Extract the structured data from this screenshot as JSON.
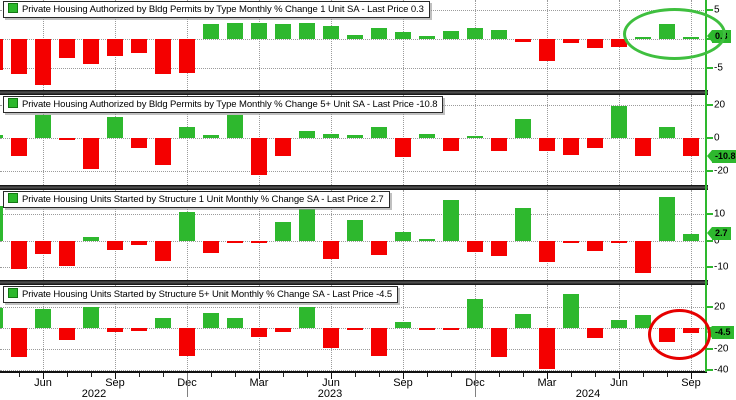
{
  "colors": {
    "bar_up_green": "#2eb82e",
    "bar_down_red": "#f40000",
    "axis_green": "#2eb82e",
    "grid_gray": "#9b9b9b",
    "annotation_green": "#3fbf3f",
    "annotation_red": "#e60000"
  },
  "chart_data": {
    "type": "bar",
    "categories": [
      "Apr 2022",
      "May 2022",
      "Jun 2022",
      "Jul 2022",
      "Aug 2022",
      "Sep 2022",
      "Oct 2022",
      "Nov 2022",
      "Dec 2022",
      "Jan 2023",
      "Feb 2023",
      "Mar 2023",
      "Apr 2023",
      "May 2023",
      "Jun 2023",
      "Jul 2023",
      "Aug 2023",
      "Sep 2023",
      "Oct 2023",
      "Nov 2023",
      "Dec 2023",
      "Jan 2024",
      "Feb 2024",
      "Mar 2024",
      "Apr 2024",
      "May 2024",
      "Jun 2024",
      "Jul 2024",
      "Aug 2024",
      "Sep 2024"
    ],
    "x_tick_labels": [
      "Jun",
      "Sep",
      "Dec",
      "Mar",
      "Jun",
      "Sep",
      "Dec",
      "Mar",
      "Jun",
      "Sep"
    ],
    "years": [
      "2022",
      "2023",
      "2024"
    ],
    "grid": true,
    "legend_position": "top-left-box-per-panel",
    "panels": [
      {
        "title": "Private Housing Authorized by Bldg Permits by Type Monthly % Change 1 Unit SA - Last Price 0.3",
        "last_price": 0.3,
        "last_price_label": "0.3",
        "ylim": [
          -8.9,
          6.7
        ],
        "yticks": [
          {
            "v": 5,
            "label": "5"
          },
          {
            "v": 0,
            "label": ""
          },
          {
            "v": -5,
            "label": "-5"
          }
        ],
        "values": [
          -5.5,
          -6.1,
          -8.1,
          -3.4,
          -4.4,
          -3.0,
          -2.5,
          -6.1,
          -6.0,
          2.6,
          2.7,
          2.7,
          2.6,
          2.7,
          2.2,
          0.7,
          1.9,
          1.1,
          0.4,
          1.4,
          1.8,
          1.5,
          -0.6,
          -3.8,
          -0.7,
          -1.6,
          -1.5,
          0.3,
          2.5,
          0.3
        ]
      },
      {
        "title": "Private Housing Authorized by Bldg Permits by Type Monthly % Change 5+ Unit SA - Last Price -10.8",
        "last_price": -10.8,
        "last_price_label": "-10.8",
        "ylim": [
          -28.1,
          25.7
        ],
        "yticks": [
          {
            "v": 20,
            "label": "20"
          },
          {
            "v": 0,
            "label": "0"
          },
          {
            "v": -20,
            "label": "-20"
          }
        ],
        "values": [
          2.0,
          -10.7,
          13.5,
          -1.0,
          -18.5,
          12.5,
          -6.0,
          -16.0,
          6.5,
          2.0,
          13.5,
          -22.0,
          -10.5,
          4.0,
          2.5,
          1.5,
          6.7,
          -11.4,
          2.3,
          -8.0,
          0.5,
          -8.0,
          11.4,
          -7.6,
          -9.9,
          -5.7,
          19.0,
          -11.0,
          6.3,
          -10.8
        ]
      },
      {
        "title": "Private Housing Units Started by Structure 1 Unit Monthly % Change SA - Last Price 2.7",
        "last_price": 2.7,
        "last_price_label": "2.7",
        "ylim": [
          -14.8,
          19.2
        ],
        "yticks": [
          {
            "v": 10,
            "label": "10"
          },
          {
            "v": 0,
            "label": "0"
          },
          {
            "v": -10,
            "label": "-10"
          }
        ],
        "values": [
          13.0,
          -10.6,
          -4.9,
          -9.4,
          1.4,
          -3.6,
          -1.5,
          -7.8,
          11.0,
          -4.6,
          -1.0,
          -0.8,
          7.2,
          12.0,
          -6.8,
          7.9,
          -5.4,
          3.4,
          0.5,
          15.5,
          -4.1,
          -5.8,
          12.5,
          -7.9,
          -0.8,
          -3.8,
          -1.0,
          -12.2,
          16.5,
          2.7
        ]
      },
      {
        "title": "Private Housing Units Started by Structure 5+ Unit Monthly % Change SA - Last Price -4.5",
        "last_price": -4.5,
        "last_price_label": "-4.5",
        "ylim": [
          -41,
          41
        ],
        "yticks": [
          {
            "v": 20,
            "label": "20"
          },
          {
            "v": 0,
            "label": ""
          },
          {
            "v": -20,
            "label": "-20"
          },
          {
            "v": -40,
            "label": "-40"
          }
        ],
        "values": [
          19.0,
          -28.0,
          18.0,
          -11.0,
          20.0,
          -3.6,
          -3.2,
          9.8,
          -26.5,
          14.0,
          9.2,
          -8.3,
          -4.1,
          20.3,
          -18.8,
          -1.9,
          -26.7,
          5.7,
          -1.5,
          -1.5,
          27.3,
          -27.6,
          13.7,
          -38.7,
          32.7,
          -9.5,
          7.3,
          12.7,
          -13.3,
          -4.5
        ]
      }
    ],
    "annotations": [
      {
        "shape": "ellipse",
        "color": "#3fbf3f",
        "panel": 1,
        "circles": "Jul-Sep 2024 bars and 0.3 last price"
      },
      {
        "shape": "ellipse",
        "color": "#e60000",
        "panel": 4,
        "circles": "Aug-Sep 2024 bars"
      }
    ]
  }
}
